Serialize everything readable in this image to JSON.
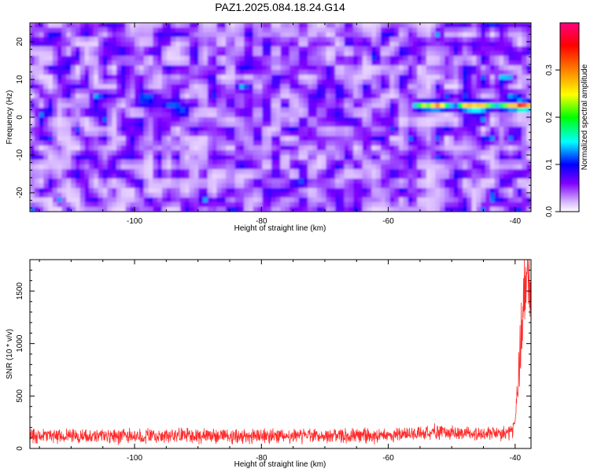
{
  "title": "PAZ1.2025.084.18.24.G14",
  "chart_data": [
    {
      "type": "heatmap",
      "xlabel": "Height of straight line (km)",
      "ylabel": "Frequency (Hz)",
      "xlim": [
        -116.5,
        -37.5
      ],
      "ylim": [
        -25,
        25
      ],
      "x_ticks": [
        -100,
        -80,
        -60,
        -40
      ],
      "y_ticks": [
        -20,
        -10,
        0,
        10,
        20
      ],
      "grid": false,
      "colorbar": {
        "label": "Normalized spectral amplitude",
        "range": [
          0,
          0.4
        ],
        "ticks": [
          0.0,
          0.1,
          0.2,
          0.3
        ],
        "colors": [
          "#ffffff",
          "#d8b8ff",
          "#8000ff",
          "#0000ff",
          "#00ffff",
          "#00ff00",
          "#ffff00",
          "#ff8000",
          "#ff0000",
          "#ff0080"
        ]
      },
      "features": [
        {
          "x_start": -56,
          "x_end": -37.5,
          "y": 3,
          "peak_value": 0.4
        }
      ],
      "background_level": 0.06
    },
    {
      "type": "line",
      "xlabel": "Height of straight line (km)",
      "ylabel": "SNR (10 * v/v)",
      "xlim": [
        -116.5,
        -37.5
      ],
      "ylim": [
        0,
        1800
      ],
      "x_ticks": [
        -100,
        -80,
        -60,
        -40
      ],
      "y_ticks": [
        0,
        500,
        1000,
        1500
      ],
      "color": "#ff2a2a",
      "grid": false,
      "series": [
        {
          "x": [
            -116.5,
            -110,
            -100,
            -90,
            -80,
            -70,
            -60,
            -56,
            -54,
            -50,
            -45,
            -42,
            -40.5,
            -40,
            -39.5,
            -39,
            -38.5,
            -38,
            -37.5
          ],
          "y": [
            120,
            120,
            115,
            118,
            115,
            115,
            120,
            160,
            160,
            150,
            145,
            140,
            150,
            300,
            650,
            1100,
            1500,
            1650,
            1400
          ]
        }
      ],
      "noise_amplitude": 60
    }
  ]
}
